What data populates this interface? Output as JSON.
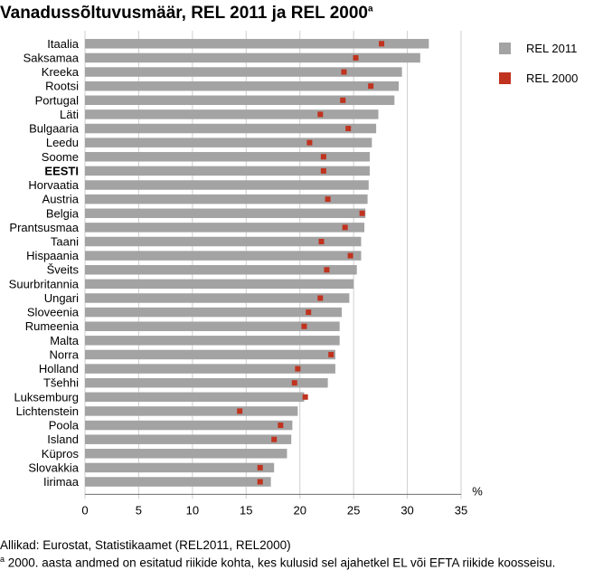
{
  "title": "Vanadussõltuvusmäär, REL 2011 ja REL 2000",
  "title_sup": "a",
  "source": "Allikad: Eurostat, Statistikaamet (REL2011, REL2000)",
  "footnote_sup": "a",
  "footnote": " 2000. aasta andmed on esitatud riikide kohta, kes kulusid sel ajahetkel EL või EFTA riikide koosseisu.",
  "colors": {
    "rel2011": "#a3a3a3",
    "rel2000": "#c0331f",
    "axis": "#6e6e6e"
  },
  "chart_data": {
    "type": "bar",
    "orientation": "horizontal",
    "title": "Vanadussõltuvusmäär, REL 2011 ja REL 2000",
    "xlabel": "%",
    "xlim": [
      0,
      35
    ],
    "xticks": [
      0,
      5,
      10,
      15,
      20,
      25,
      30,
      35
    ],
    "grid": true,
    "legend_position": "right",
    "categories": [
      "Itaalia",
      "Saksamaa",
      "Kreeka",
      "Rootsi",
      "Portugal",
      "Läti",
      "Bulgaaria",
      "Leedu",
      "Soome",
      "EESTI",
      "Horvaatia",
      "Austria",
      "Belgia",
      "Prantsusmaa",
      "Taani",
      "Hispaania",
      "Šveits",
      "Suurbritannia",
      "Ungari",
      "Sloveenia",
      "Rumeenia",
      "Malta",
      "Norra",
      "Holland",
      "Tšehhi",
      "Luksemburg",
      "Lichtenstein",
      "Poola",
      "Island",
      "Küpros",
      "Slovakkia",
      "Iirimaa"
    ],
    "highlight_category": "EESTI",
    "series": [
      {
        "name": "REL 2011",
        "mark": "bar",
        "values": [
          32.0,
          31.2,
          29.5,
          29.2,
          28.8,
          27.3,
          27.1,
          26.7,
          26.5,
          26.5,
          26.4,
          26.3,
          26.1,
          26.0,
          25.7,
          25.7,
          25.3,
          25.0,
          24.6,
          23.9,
          23.7,
          23.7,
          23.3,
          23.3,
          22.6,
          20.4,
          19.8,
          19.3,
          19.2,
          18.8,
          17.6,
          17.3
        ]
      },
      {
        "name": "REL 2000",
        "mark": "square",
        "values": [
          27.6,
          25.2,
          24.1,
          26.6,
          24.0,
          21.9,
          24.5,
          20.9,
          22.2,
          22.2,
          null,
          22.6,
          25.8,
          24.2,
          22.0,
          24.7,
          22.5,
          null,
          21.9,
          20.8,
          20.4,
          null,
          22.9,
          19.8,
          19.5,
          20.5,
          14.4,
          18.2,
          17.6,
          null,
          16.3,
          16.3
        ]
      }
    ]
  }
}
